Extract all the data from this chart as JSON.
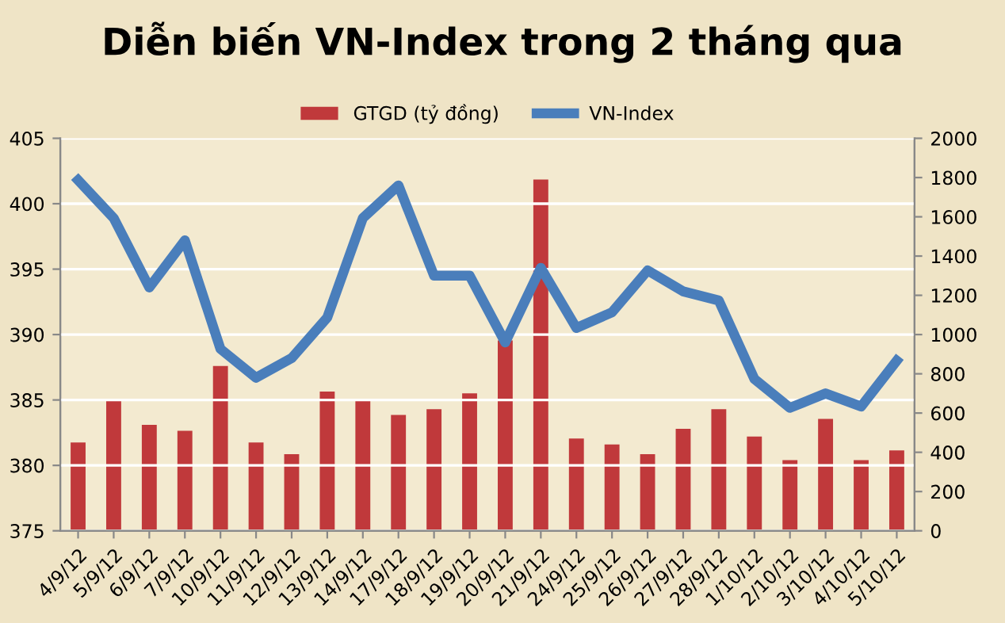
{
  "chart_data": {
    "type": "bar",
    "title": "Diễn biến VN-Index trong 2 tháng qua",
    "categories": [
      "4/9/12",
      "5/9/12",
      "6/9/12",
      "7/9/12",
      "10/9/12",
      "11/9/12",
      "12/9/12",
      "13/9/12",
      "14/9/12",
      "17/9/12",
      "18/9/12",
      "19/9/12",
      "20/9/12",
      "21/9/12",
      "24/9/12",
      "25/9/12",
      "26/9/12",
      "27/9/12",
      "28/9/12",
      "1/10/12",
      "2/10/12",
      "3/10/12",
      "4/10/12",
      "5/10/12"
    ],
    "series": [
      {
        "name": "GTGD (tỷ đồng)",
        "axis": "y2",
        "color": "#c0393b",
        "values": [
          450,
          670,
          540,
          510,
          840,
          450,
          390,
          710,
          670,
          590,
          620,
          700,
          970,
          1790,
          470,
          440,
          390,
          520,
          620,
          480,
          360,
          570,
          360,
          410
        ]
      },
      {
        "name": "VN-Index",
        "type": "line",
        "color": "#4a7ebb",
        "values": [
          401.8,
          398.9,
          393.6,
          397.2,
          388.9,
          386.7,
          388.2,
          391.3,
          398.9,
          401.4,
          394.5,
          394.5,
          389.4,
          395.1,
          390.5,
          391.7,
          394.9,
          393.3,
          392.6,
          386.6,
          384.4,
          385.5,
          384.5,
          388.0
        ]
      }
    ],
    "ylim": [
      375,
      405
    ],
    "yticks": [
      375,
      380,
      385,
      390,
      395,
      400,
      405
    ],
    "y2lim": [
      0,
      2000
    ],
    "y2ticks": [
      0,
      200,
      400,
      600,
      800,
      1000,
      1200,
      1400,
      1600,
      1800,
      2000
    ],
    "grid": "y",
    "legend": "top"
  }
}
